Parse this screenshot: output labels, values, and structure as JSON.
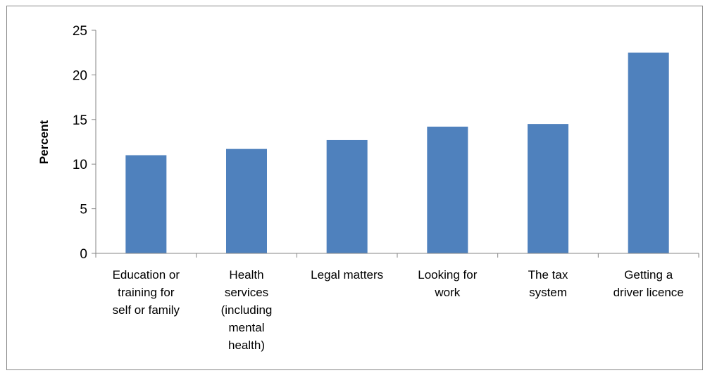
{
  "chart_data": {
    "type": "bar",
    "title": "",
    "xlabel": "",
    "ylabel": "Percent",
    "ylim": [
      0,
      25
    ],
    "yticks": [
      0,
      5,
      10,
      15,
      20,
      25
    ],
    "grid": false,
    "legend": "none",
    "categories": [
      [
        "Education or",
        "training for",
        "self or family"
      ],
      [
        "Health",
        "services",
        "(including",
        "mental",
        "health)"
      ],
      [
        "Legal matters"
      ],
      [
        "Looking for",
        "work"
      ],
      [
        "The tax",
        "system"
      ],
      [
        "Getting a",
        "driver licence"
      ]
    ],
    "values": [
      11.0,
      11.7,
      12.7,
      14.2,
      14.5,
      22.5
    ],
    "colors": {
      "bar": "#4f81bd",
      "axis": "#868686",
      "frame": "#868686"
    }
  }
}
